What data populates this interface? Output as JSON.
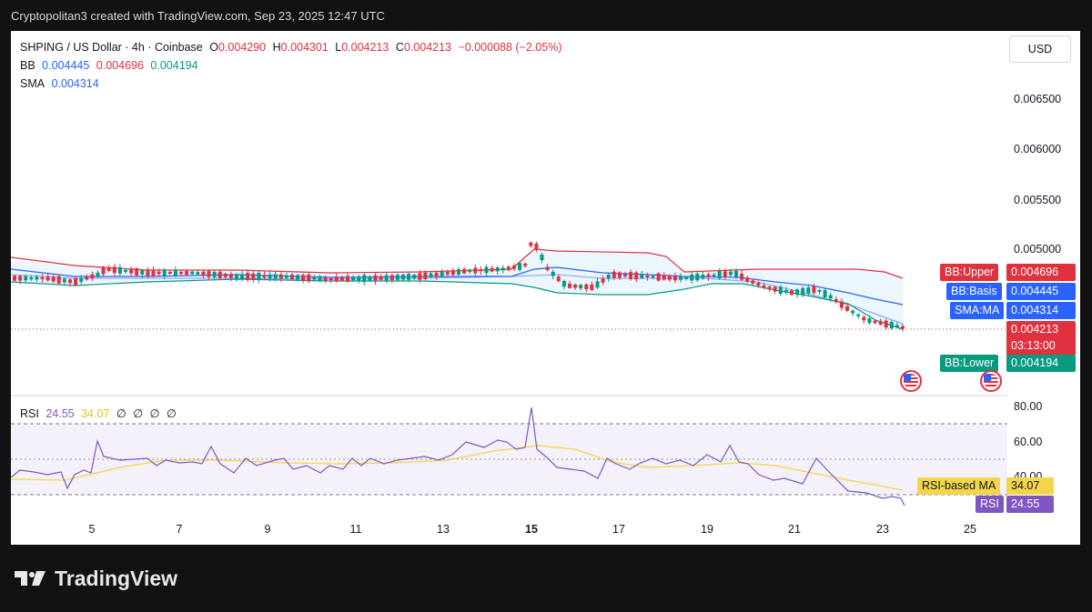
{
  "header": {
    "credit": "Cryptopolitan3 created with TradingView.com, Sep 23, 2025 12:47 UTC"
  },
  "legend": {
    "symbol": "SHPING / US Dollar · 4h · Coinbase",
    "open_label": "O",
    "open": "0.004290",
    "high_label": "H",
    "high": "0.004301",
    "low_label": "L",
    "low": "0.004213",
    "close_label": "C",
    "close": "0.004213",
    "change": "−0.000088 (−2.05%)",
    "bb_label": "BB",
    "bb_basis": "0.004445",
    "bb_upper": "0.004696",
    "bb_lower": "0.004194",
    "sma_label": "SMA",
    "sma": "0.004314"
  },
  "currency_button": "USD",
  "price_axis": [
    "0.006500",
    "0.006000",
    "0.005500",
    "0.005000"
  ],
  "price_tags": {
    "bb_upper_label": "BB:Upper",
    "bb_upper": "0.004696",
    "bb_basis_label": "BB:Basis",
    "bb_basis": "0.004445",
    "sma_label": "SMA:MA",
    "sma": "0.004314",
    "last_price": "0.004213",
    "countdown": "03:13:00",
    "bb_lower_label": "BB:Lower",
    "bb_lower": "0.004194"
  },
  "rsi": {
    "label": "RSI",
    "value": "24.55",
    "ma_value": "34.07",
    "extras": [
      "∅",
      "∅",
      "∅",
      "∅"
    ],
    "axis": [
      "80.00",
      "60.00",
      "40.00"
    ],
    "ma_tag_label": "RSI-based MA",
    "ma_tag_value": "34.07",
    "rsi_tag_label": "RSI",
    "rsi_tag_value": "24.55"
  },
  "time_axis": [
    "5",
    "7",
    "9",
    "11",
    "13",
    "15",
    "17",
    "19",
    "21",
    "23",
    "25"
  ],
  "brand": {
    "name": "TradingView"
  },
  "colors": {
    "up": "#089981",
    "down": "#e0313e",
    "bb_upper": "#e0313e",
    "bb_lower": "#089981",
    "bb_basis": "#2962ff",
    "sma": "#2962ff",
    "rsi": "#7e57c2",
    "rsi_ma": "#f2d54a"
  },
  "icons": [
    "us-flag-icon",
    "tradingview-logo-icon"
  ]
}
